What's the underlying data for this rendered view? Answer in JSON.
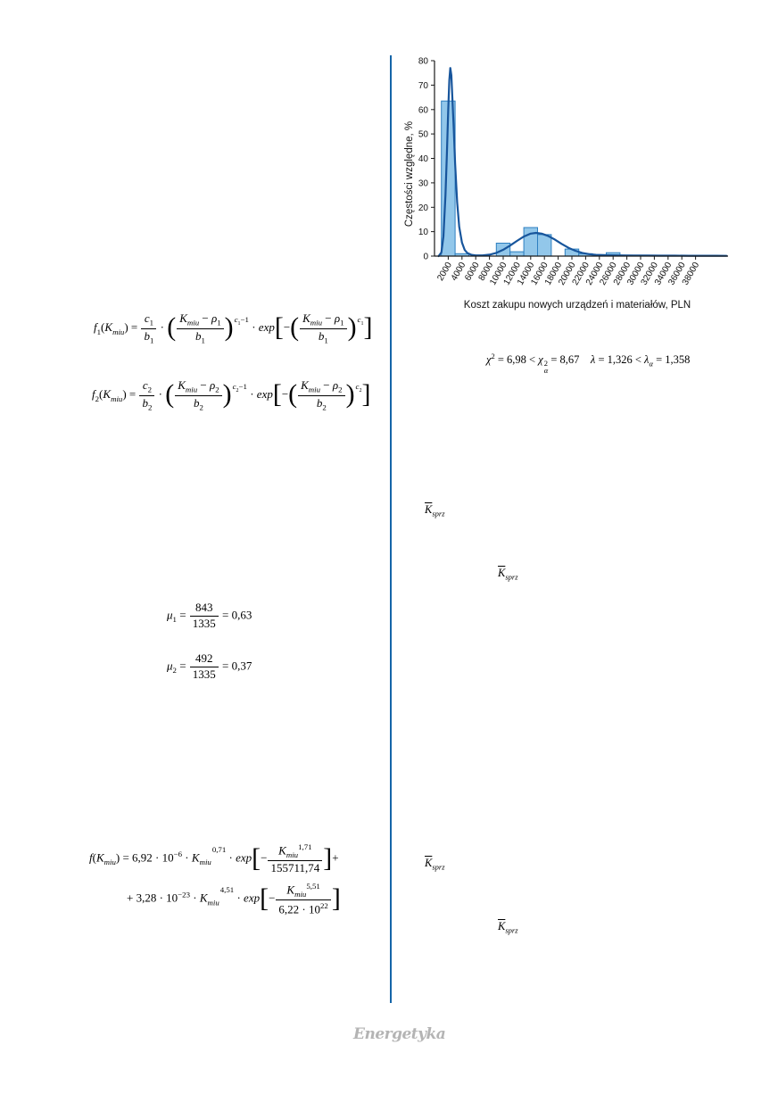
{
  "page": {
    "footer_logo": "Energetyka"
  },
  "colors": {
    "divider": "#1565a8",
    "bar_fill": "#92c7ea",
    "bar_stroke": "#2e7fc0",
    "curve": "#17559c",
    "axis": "#1a1a1a",
    "tick_text": "#111111",
    "logo_gray": "#b4b4b4"
  },
  "chart_data": {
    "type": "bar",
    "subtype": "histogram with fitted two-component Weibull mixture density curve",
    "title": "",
    "xlabel": "Koszt zakupu nowych urządzeń i materiałów, PLN",
    "ylabel": "Częstości względne, %",
    "xlim": [
      0,
      42600
    ],
    "ylim": [
      0,
      80
    ],
    "grid": false,
    "legend": "none",
    "y_ticks": [
      0,
      10,
      20,
      30,
      40,
      50,
      60,
      70,
      80
    ],
    "x_ticks": [
      2000,
      4000,
      6000,
      8000,
      10000,
      12000,
      14000,
      16000,
      18000,
      20000,
      22000,
      24000,
      26000,
      28000,
      30000,
      32000,
      34000,
      36000,
      38000
    ],
    "bin_width": 2000,
    "categories": [
      2000,
      4000,
      6000,
      8000,
      10000,
      12000,
      14000,
      16000,
      18000,
      20000,
      22000,
      24000,
      26000,
      28000,
      30000,
      32000,
      34000,
      36000,
      38000
    ],
    "values": [
      63.5,
      1.0,
      0,
      0,
      5.3,
      1.8,
      11.7,
      8.8,
      0,
      2.9,
      1.0,
      0.6,
      1.4,
      0,
      0.2,
      0.25,
      0.3,
      0.25,
      0.25
    ],
    "curve_points": [
      [
        600,
        0
      ],
      [
        1000,
        1.5
      ],
      [
        1300,
        8
      ],
      [
        1600,
        25
      ],
      [
        1800,
        42
      ],
      [
        2000,
        60
      ],
      [
        2150,
        72
      ],
      [
        2300,
        77
      ],
      [
        2450,
        74
      ],
      [
        2600,
        65
      ],
      [
        2800,
        52
      ],
      [
        3000,
        38
      ],
      [
        3300,
        22
      ],
      [
        3600,
        12
      ],
      [
        4000,
        5.5
      ],
      [
        4400,
        2.5
      ],
      [
        4800,
        1.2
      ],
      [
        5400,
        0.5
      ],
      [
        6000,
        0.3
      ],
      [
        7000,
        0.3
      ],
      [
        8000,
        0.6
      ],
      [
        9000,
        1.3
      ],
      [
        10000,
        2.6
      ],
      [
        11000,
        4.3
      ],
      [
        12000,
        6.2
      ],
      [
        13000,
        8.0
      ],
      [
        14000,
        9.2
      ],
      [
        14800,
        9.5
      ],
      [
        15600,
        9.2
      ],
      [
        16500,
        8.3
      ],
      [
        17500,
        6.8
      ],
      [
        18500,
        5.0
      ],
      [
        19500,
        3.4
      ],
      [
        20500,
        2.2
      ],
      [
        21500,
        1.3
      ],
      [
        22500,
        0.8
      ],
      [
        23500,
        0.5
      ],
      [
        25000,
        0.35
      ],
      [
        27000,
        0.3
      ],
      [
        29000,
        0.25
      ],
      [
        31000,
        0.22
      ],
      [
        33000,
        0.2
      ],
      [
        35000,
        0.18
      ],
      [
        37000,
        0.15
      ],
      [
        39000,
        0.15
      ],
      [
        41000,
        0.13
      ],
      [
        42500,
        0.12
      ]
    ]
  },
  "stats": {
    "chi2": "6,98",
    "chi2_critical": "8,67",
    "lambda": "1,326",
    "lambda_critical": "1,358",
    "html": "<i>χ</i><sup>2</sup> = 6,98 &lt; <i>χ</i><span class='supsub'><sup>2</sup><sub><i>α</i></sub></span> = 8,67&nbsp;&nbsp;&nbsp;&nbsp;<i>λ</i> = 1,326 &lt; <i>λ</i><sub><i>α</i></sub> = 1,358"
  },
  "formulas": {
    "f1_html": "<i>f</i><sub>1</sub>(<i>K</i><sub><i>miu</i></sub>) = <span class='frac'><span class='num'><i>c</i><sub>1</sub></span><span class='den'><i>b</i><sub>1</sub></span></span> · <span class='big'>(</span><span class='frac'><span class='num'><i>K</i><sub><i>miu</i></sub> − <i>ρ</i><sub>1</sub></span><span class='den'><i>b</i><sub>1</sub></span></span><span class='big'>)</span><span class='psup'><i>c</i><sub>1</sub>−1</span> · <i>exp</i><span class='big'>[</span>−<span class='big'>(</span><span class='frac'><span class='num'><i>K</i><sub><i>miu</i></sub> − <i>ρ</i><sub>1</sub></span><span class='den'><i>b</i><sub>1</sub></span></span><span class='big'>)</span><span class='psup'><i>c</i><sub>1</sub></span><span class='big'>]</span>",
    "f2_html": "<i>f</i><sub>2</sub>(<i>K</i><sub><i>miu</i></sub>) = <span class='frac'><span class='num'><i>c</i><sub>2</sub></span><span class='den'><i>b</i><sub>2</sub></span></span> · <span class='big'>(</span><span class='frac'><span class='num'><i>K</i><sub><i>miu</i></sub> − <i>ρ</i><sub>2</sub></span><span class='den'><i>b</i><sub>2</sub></span></span><span class='big'>)</span><span class='psup'><i>c</i><sub>2</sub>−1</span> · <i>exp</i><span class='big'>[</span>−<span class='big'>(</span><span class='frac'><span class='num'><i>K</i><sub><i>miu</i></sub> − <i>ρ</i><sub>2</sub></span><span class='den'><i>b</i><sub>2</sub></span></span><span class='big'>)</span><span class='psup'><i>c</i><sub>2</sub></span><span class='big'>]</span>",
    "mu1_html": "<i>μ</i><sub>1</sub> = <span class='frac'><span class='num'>843</span><span class='den'>1335</span></span> = 0,63",
    "mu2_html": "<i>μ</i><sub>2</sub> = <span class='frac'><span class='num'>492</span><span class='den'>1335</span></span> = 0,37",
    "f_mix_line1_html": "<i>f</i>(<i>K</i><sub><i>miu</i></sub>) = 6,92 · 10<sup>−6</sup> · <i>K</i><sub><i>miu</i></sub><span class='psup'>0,71</span> · <i>exp</i><span class='big'>[</span>−<span class='frac'><span class='num'><i>K</i><sub><i>miu</i></sub><sup>1,71</sup></span><span class='den'>155711,74</span></span><span class='big'>]</span>+",
    "f_mix_line2_html": "+ 3,28 · 10<sup>−23</sup> · <i>K</i><sub><i>miu</i></sub><span class='psup'>4,51</span> · <i>exp</i><span class='big'>[</span>−<span class='frac'><span class='num'><i>K</i><sub><i>miu</i></sub><sup>5,51</sup></span><span class='den'>6,22 · 10<sup>22</sup></span></span><span class='big'>]</span>",
    "ksprz_html": "<span class='ovl'><i>K</i></span><sub><i>sprz</i></sub>"
  }
}
